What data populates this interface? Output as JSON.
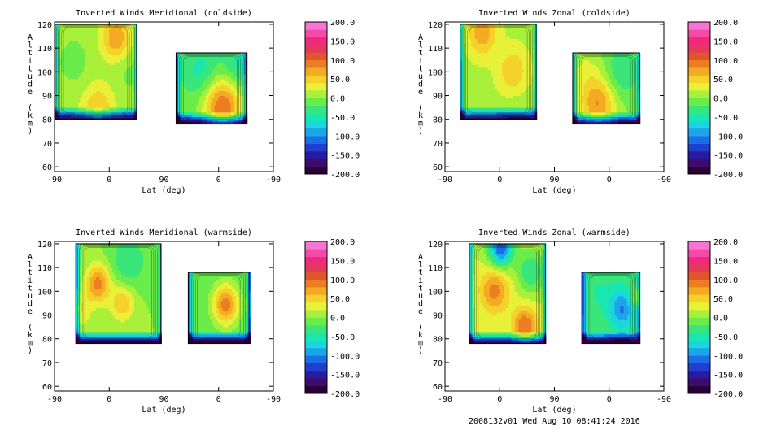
{
  "footer": "2008132v01 Wed Aug 10 08:41:24 2016",
  "colorbar": {
    "labels": [
      "200.0",
      "150.0",
      "100.0",
      "50.0",
      "0.0",
      "-50.0",
      "-100.0",
      "-150.0",
      "-200.0"
    ],
    "range": [
      -200,
      200
    ],
    "colors": [
      "#2a0033",
      "#3d0a6e",
      "#2a1aa0",
      "#1f3fd0",
      "#1a6fe8",
      "#1aa6e8",
      "#1ad6e0",
      "#1ae6b0",
      "#3ae67a",
      "#6aec4a",
      "#a8f03a",
      "#e8f038",
      "#f4d22a",
      "#f4aa22",
      "#ec7e22",
      "#e2542e",
      "#e23a5a",
      "#f0287e",
      "#f44aa8",
      "#f674d4"
    ]
  },
  "chart_data": [
    {
      "type": "heatmap",
      "title": "Inverted Winds Meridional (coldside)",
      "xlabel": "Lat (deg)",
      "ylabel": "Altitude (km)",
      "xticks": [
        "-90",
        "0",
        "90",
        "0",
        "-90"
      ],
      "yticks": [
        "60",
        "70",
        "80",
        "90",
        "100",
        "110",
        "120"
      ],
      "ylim": [
        58,
        121
      ],
      "panes": [
        {
          "from": -90,
          "to": 45,
          "alt_low": 80,
          "alt_high": 120,
          "blobs": [
            {
              "lat": 10,
              "alt": 114,
              "v": 70,
              "s": 16
            },
            {
              "lat": -60,
              "alt": 104,
              "v": -20,
              "s": 18
            },
            {
              "lat": -20,
              "alt": 84,
              "v": 50,
              "s": 18
            },
            {
              "lat": 30,
              "alt": 100,
              "v": -15,
              "s": 18
            }
          ],
          "base": 10
        },
        {
          "from": 110,
          "to": 225,
          "alt_low": 78,
          "alt_high": 108,
          "blobs": [
            {
              "lat": 185,
              "alt": 85,
              "v": 110,
              "s": 22
            },
            {
              "lat": 150,
              "alt": 100,
              "v": -40,
              "s": 20
            },
            {
              "lat": 210,
              "alt": 102,
              "v": -40,
              "s": 18
            }
          ],
          "base": -10
        }
      ]
    },
    {
      "type": "heatmap",
      "title": "Inverted Winds Zonal (coldside)",
      "xlabel": "Lat (deg)",
      "ylabel": "Altitude (km)",
      "xticks": [
        "-90",
        "0",
        "90",
        "0",
        "-90"
      ],
      "yticks": [
        "60",
        "70",
        "80",
        "90",
        "100",
        "110",
        "120"
      ],
      "ylim": [
        58,
        121
      ],
      "panes": [
        {
          "from": -65,
          "to": 60,
          "alt_low": 80,
          "alt_high": 120,
          "blobs": [
            {
              "lat": -30,
              "alt": 116,
              "v": 60,
              "s": 16
            },
            {
              "lat": 20,
              "alt": 100,
              "v": 45,
              "s": 16
            },
            {
              "lat": -40,
              "alt": 100,
              "v": 0,
              "s": 20
            },
            {
              "lat": 30,
              "alt": 82,
              "v": -10,
              "s": 18
            }
          ],
          "base": 15
        },
        {
          "from": 120,
          "to": 230,
          "alt_low": 78,
          "alt_high": 108,
          "blobs": [
            {
              "lat": 160,
              "alt": 86,
              "v": 80,
              "s": 20
            },
            {
              "lat": 200,
              "alt": 100,
              "v": -40,
              "s": 20
            },
            {
              "lat": 140,
              "alt": 100,
              "v": 20,
              "s": 18
            }
          ],
          "base": 0
        }
      ]
    },
    {
      "type": "heatmap",
      "title": "Inverted Winds Meridional (warmside)",
      "xlabel": "Lat (deg)",
      "ylabel": "Altitude (km)",
      "xticks": [
        "-90",
        "0",
        "90",
        "0",
        "-90"
      ],
      "yticks": [
        "60",
        "70",
        "80",
        "90",
        "100",
        "110",
        "120"
      ],
      "ylim": [
        58,
        121
      ],
      "panes": [
        {
          "from": -55,
          "to": 85,
          "alt_low": 78,
          "alt_high": 120,
          "blobs": [
            {
              "lat": -20,
              "alt": 103,
              "v": 90,
              "s": 14
            },
            {
              "lat": 20,
              "alt": 95,
              "v": 60,
              "s": 14
            },
            {
              "lat": 30,
              "alt": 112,
              "v": -40,
              "s": 20
            },
            {
              "lat": -50,
              "alt": 92,
              "v": 40,
              "s": 14
            }
          ],
          "base": 0
        },
        {
          "from": 130,
          "to": 230,
          "alt_low": 78,
          "alt_high": 108,
          "blobs": [
            {
              "lat": 190,
              "alt": 94,
              "v": 110,
              "s": 16
            },
            {
              "lat": 160,
              "alt": 98,
              "v": 0,
              "s": 20
            }
          ],
          "base": -20
        }
      ]
    },
    {
      "type": "heatmap",
      "title": "Inverted Winds Zonal (warmside)",
      "xlabel": "Lat (deg)",
      "ylabel": "Altitude (km)",
      "xticks": [
        "-90",
        "0",
        "90",
        "0",
        "-90"
      ],
      "yticks": [
        "60",
        "70",
        "80",
        "90",
        "100",
        "110",
        "120"
      ],
      "ylim": [
        58,
        121
      ],
      "panes": [
        {
          "from": -50,
          "to": 75,
          "alt_low": 78,
          "alt_high": 120,
          "blobs": [
            {
              "lat": 0,
              "alt": 118,
              "v": -140,
              "s": 14
            },
            {
              "lat": -10,
              "alt": 100,
              "v": 70,
              "s": 16
            },
            {
              "lat": 40,
              "alt": 85,
              "v": 80,
              "s": 14
            },
            {
              "lat": 50,
              "alt": 108,
              "v": -60,
              "s": 16
            }
          ],
          "base": 20
        },
        {
          "from": 135,
          "to": 230,
          "alt_low": 78,
          "alt_high": 108,
          "blobs": [
            {
              "lat": 200,
              "alt": 92,
              "v": -80,
              "s": 16
            },
            {
              "lat": 160,
              "alt": 100,
              "v": -20,
              "s": 20
            },
            {
              "lat": 225,
              "alt": 97,
              "v": 60,
              "s": 8
            }
          ],
          "base": -20
        }
      ]
    }
  ]
}
